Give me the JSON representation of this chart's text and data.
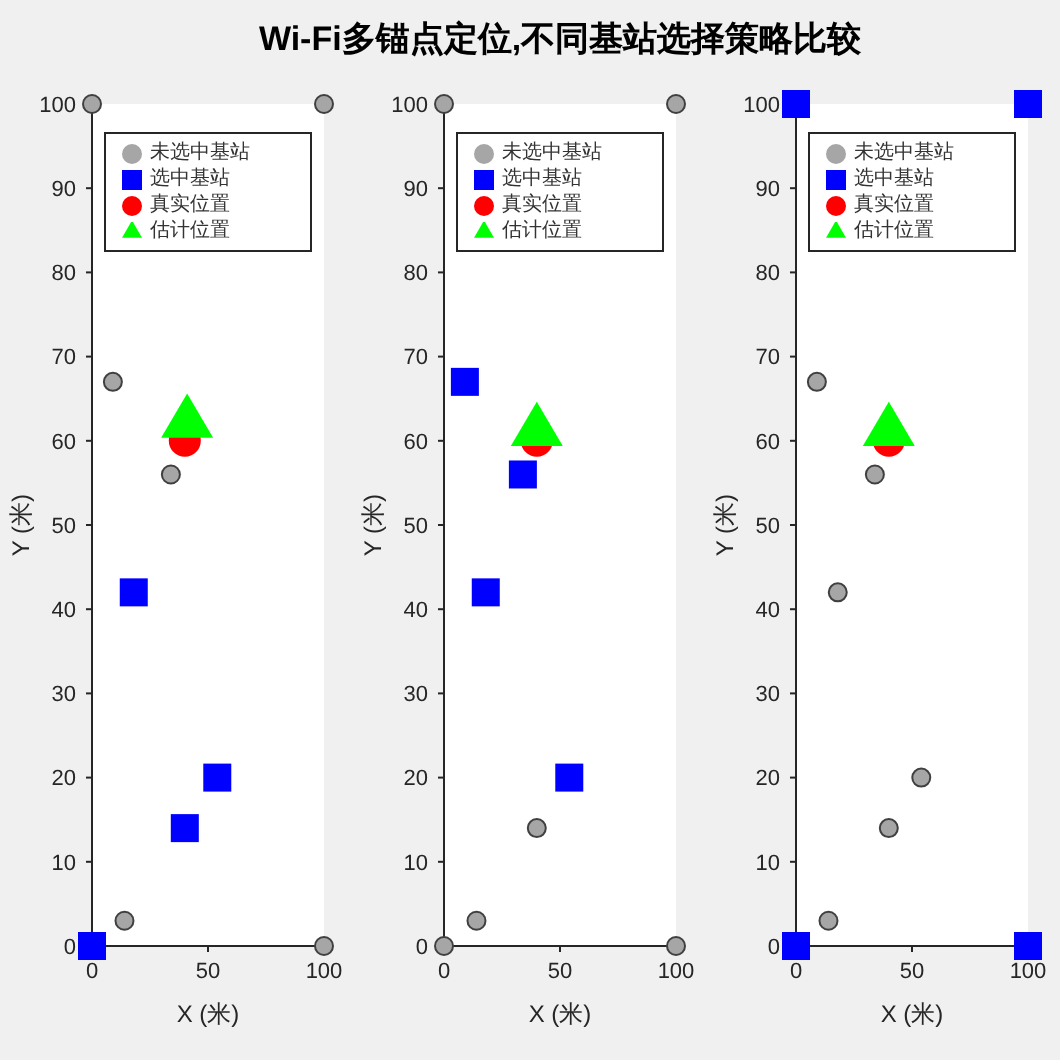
{
  "chart_data": [
    {
      "type": "scatter",
      "xlabel": "X (米)",
      "ylabel": "Y (米)",
      "xlim": [
        0,
        100
      ],
      "ylim": [
        0,
        100
      ],
      "xticks": [
        0,
        50,
        100
      ],
      "yticks": [
        0,
        10,
        20,
        30,
        40,
        50,
        60,
        70,
        80,
        90,
        100
      ],
      "legend": "top",
      "series": [
        {
          "name": "未选中基站",
          "color": "#a6a6a6",
          "marker": "circle",
          "x": [
            0,
            100,
            9,
            34,
            14,
            100
          ],
          "values": [
            100,
            100,
            67,
            56,
            3,
            0
          ]
        },
        {
          "name": "选中基站",
          "color": "#0000ff",
          "marker": "square",
          "x": [
            18,
            54,
            40,
            0
          ],
          "values": [
            42,
            20,
            14,
            0
          ]
        },
        {
          "name": "真实位置",
          "color": "#ff0000",
          "marker": "circle",
          "x": [
            40
          ],
          "values": [
            60
          ]
        },
        {
          "name": "估计位置",
          "color": "#00ff00",
          "marker": "triangle",
          "x": [
            41
          ],
          "values": [
            63
          ]
        }
      ]
    },
    {
      "type": "scatter",
      "title": "Wi-Fi多锚点定位,不同基站选择策略比较",
      "xlabel": "X (米)",
      "ylabel": "Y (米)",
      "xlim": [
        0,
        100
      ],
      "ylim": [
        0,
        100
      ],
      "xticks": [
        0,
        50,
        100
      ],
      "yticks": [
        0,
        10,
        20,
        30,
        40,
        50,
        60,
        70,
        80,
        90,
        100
      ],
      "legend": "top",
      "series": [
        {
          "name": "未选中基站",
          "color": "#a6a6a6",
          "marker": "circle",
          "x": [
            0,
            100,
            40,
            14,
            0,
            100
          ],
          "values": [
            100,
            100,
            14,
            3,
            0,
            0
          ]
        },
        {
          "name": "选中基站",
          "color": "#0000ff",
          "marker": "square",
          "x": [
            9,
            34,
            18,
            54
          ],
          "values": [
            67,
            56,
            42,
            20
          ]
        },
        {
          "name": "真实位置",
          "color": "#ff0000",
          "marker": "circle",
          "x": [
            40
          ],
          "values": [
            60
          ]
        },
        {
          "name": "估计位置",
          "color": "#00ff00",
          "marker": "triangle",
          "x": [
            40
          ],
          "values": [
            62
          ]
        }
      ]
    },
    {
      "type": "scatter",
      "xlabel": "X (米)",
      "ylabel": "Y (米)",
      "xlim": [
        0,
        100
      ],
      "ylim": [
        0,
        100
      ],
      "xticks": [
        0,
        50,
        100
      ],
      "yticks": [
        0,
        10,
        20,
        30,
        40,
        50,
        60,
        70,
        80,
        90,
        100
      ],
      "legend": "top",
      "series": [
        {
          "name": "未选中基站",
          "color": "#a6a6a6",
          "marker": "circle",
          "x": [
            9,
            34,
            18,
            54,
            40,
            14
          ],
          "values": [
            67,
            56,
            42,
            20,
            14,
            3
          ]
        },
        {
          "name": "选中基站",
          "color": "#0000ff",
          "marker": "square",
          "x": [
            0,
            100,
            0,
            100
          ],
          "values": [
            100,
            100,
            0,
            0
          ]
        },
        {
          "name": "真实位置",
          "color": "#ff0000",
          "marker": "circle",
          "x": [
            40
          ],
          "values": [
            60
          ]
        },
        {
          "name": "估计位置",
          "color": "#00ff00",
          "marker": "triangle",
          "x": [
            40
          ],
          "values": [
            62
          ]
        }
      ]
    }
  ]
}
